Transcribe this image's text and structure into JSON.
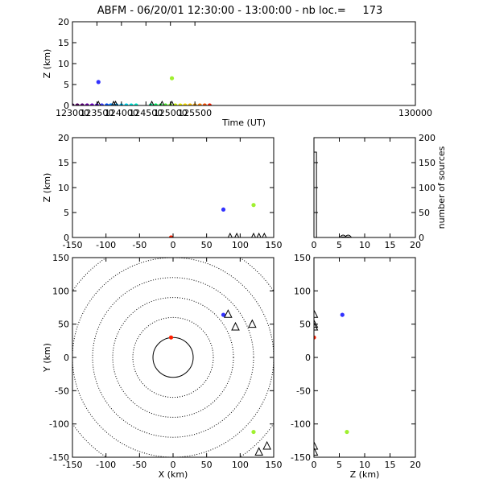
{
  "title": "ABFM - 06/20/01 12:30:00 - 13:00:00 - nb loc.=     173",
  "chart_data": [
    {
      "id": "time_height",
      "type": "scatter",
      "xlabel": "Time (UT)",
      "ylabel": "Z (km)",
      "xlim": [
        123000,
        130000
      ],
      "ylim": [
        0,
        20
      ],
      "xticks": [
        123000,
        123500,
        124000,
        124500,
        125000,
        125500,
        130000
      ],
      "yticks": [
        0,
        5,
        10,
        15,
        20
      ],
      "points": [
        {
          "x": 123000,
          "y": 0,
          "color": "#3c0050"
        },
        {
          "x": 123100,
          "y": 0,
          "color": "#50005a"
        },
        {
          "x": 123200,
          "y": 0,
          "color": "#5a0078"
        },
        {
          "x": 123300,
          "y": 0,
          "color": "#6a00a0"
        },
        {
          "x": 123400,
          "y": 0,
          "color": "#7000c8"
        },
        {
          "x": 123500,
          "y": 0,
          "color": "#5a00e6"
        },
        {
          "x": 123530,
          "y": 5.6,
          "color": "#3232ff"
        },
        {
          "x": 123600,
          "y": 0,
          "color": "#3c3cff"
        },
        {
          "x": 123700,
          "y": 0,
          "color": "#0050ff"
        },
        {
          "x": 123780,
          "y": 0,
          "color": "#0070ff"
        },
        {
          "x": 123800,
          "y": 0,
          "color": "#0090ff"
        },
        {
          "x": 123900,
          "y": 0,
          "color": "#00a8ff"
        },
        {
          "x": 124000,
          "y": 0,
          "color": "#00c8ff"
        },
        {
          "x": 124100,
          "y": 0,
          "color": "#00d8f0"
        },
        {
          "x": 124200,
          "y": 0,
          "color": "#00e8e0"
        },
        {
          "x": 124300,
          "y": 0,
          "color": "#00f0d0"
        },
        {
          "x": 124600,
          "y": 0,
          "color": "#00f090"
        },
        {
          "x": 124700,
          "y": 0,
          "color": "#00f060"
        },
        {
          "x": 124800,
          "y": 0,
          "color": "#20f040"
        },
        {
          "x": 124900,
          "y": 0,
          "color": "#50f030"
        },
        {
          "x": 125000,
          "y": 0,
          "color": "#80f020"
        },
        {
          "x": 125030,
          "y": 6.5,
          "color": "#a0f030"
        },
        {
          "x": 125100,
          "y": 0,
          "color": "#c8f000"
        },
        {
          "x": 125200,
          "y": 0,
          "color": "#f0f000"
        },
        {
          "x": 125300,
          "y": 0,
          "color": "#ffe000"
        },
        {
          "x": 125400,
          "y": 0,
          "color": "#ffc000"
        },
        {
          "x": 125500,
          "y": 0,
          "color": "#ffa000"
        },
        {
          "x": 125600,
          "y": 0,
          "color": "#ff8000"
        },
        {
          "x": 125700,
          "y": 0,
          "color": "#ff5000"
        },
        {
          "x": 125800,
          "y": 0,
          "color": "#ff2000"
        }
      ],
      "triangles": [
        {
          "x": 123530,
          "y": 0
        },
        {
          "x": 123840,
          "y": 0
        },
        {
          "x": 123880,
          "y": 0
        },
        {
          "x": 124620,
          "y": 0
        },
        {
          "x": 124830,
          "y": 0
        },
        {
          "x": 125030,
          "y": 0
        }
      ]
    },
    {
      "id": "x_height",
      "type": "scatter",
      "xlabel": "",
      "ylabel": "Z (km)",
      "xlim": [
        -150,
        150
      ],
      "ylim": [
        0,
        20
      ],
      "xticks": [
        -150,
        -100,
        -50,
        0,
        50,
        100,
        150
      ],
      "yticks": [
        0,
        5,
        10,
        15,
        20
      ],
      "points": [
        {
          "x": 75,
          "y": 5.6,
          "color": "#3232ff"
        },
        {
          "x": 120,
          "y": 6.5,
          "color": "#a0f030"
        },
        {
          "x": -3,
          "y": 0,
          "color": "#ff2000"
        }
      ],
      "triangles": [
        {
          "x": 85,
          "y": 0
        },
        {
          "x": 95,
          "y": 0
        },
        {
          "x": 120,
          "y": 0
        },
        {
          "x": 128,
          "y": 0
        },
        {
          "x": 136,
          "y": 0
        }
      ]
    },
    {
      "id": "height_histogram",
      "type": "bar",
      "xlabel": "",
      "ylabel": "number of sources",
      "xlim": [
        0,
        20
      ],
      "ylim": [
        0,
        200
      ],
      "xticks": [
        0,
        5,
        10,
        15,
        20
      ],
      "yticks": [
        0,
        50,
        100,
        150,
        200
      ],
      "bins": [
        0,
        0.5,
        1,
        1.5,
        2,
        2.5,
        3,
        3.5,
        4,
        4.5,
        5,
        5.5,
        6,
        6.5,
        7
      ],
      "counts": [
        171,
        0,
        0,
        0,
        0,
        0,
        0,
        0,
        0,
        0,
        0,
        1,
        0,
        1,
        0
      ]
    },
    {
      "id": "plan_view",
      "type": "scatter",
      "xlabel": "X (km)",
      "ylabel": "Y (km)",
      "xlim": [
        -150,
        150
      ],
      "ylim": [
        -150,
        150
      ],
      "xticks": [
        -150,
        -100,
        -50,
        0,
        50,
        100,
        150
      ],
      "yticks": [
        -150,
        -100,
        -50,
        0,
        50,
        100,
        150
      ],
      "range_rings_km": [
        30,
        60,
        90,
        120,
        150,
        180
      ],
      "points": [
        {
          "x": 75,
          "y": 64,
          "color": "#3232ff"
        },
        {
          "x": 120,
          "y": -112,
          "color": "#a0f030"
        },
        {
          "x": -3,
          "y": 30,
          "color": "#ff2000"
        }
      ],
      "triangles": [
        {
          "x": 82,
          "y": 65
        },
        {
          "x": 93,
          "y": 46
        },
        {
          "x": 118,
          "y": 50
        },
        {
          "x": 128,
          "y": -142
        },
        {
          "x": 140,
          "y": -133
        }
      ]
    },
    {
      "id": "height_y",
      "type": "scatter",
      "xlabel": "Z (km)",
      "ylabel": "",
      "xlim": [
        0,
        20
      ],
      "ylim": [
        -150,
        150
      ],
      "xticks": [
        0,
        5,
        10,
        15,
        20
      ],
      "yticks": [
        -150,
        -100,
        -50,
        0,
        50,
        100,
        150
      ],
      "points": [
        {
          "x": 5.6,
          "y": 64,
          "color": "#3232ff"
        },
        {
          "x": 6.5,
          "y": -112,
          "color": "#a0f030"
        },
        {
          "x": 0,
          "y": 30,
          "color": "#ff2000"
        }
      ],
      "triangles": [
        {
          "x": 0,
          "y": 65
        },
        {
          "x": 0,
          "y": 50
        },
        {
          "x": 0,
          "y": 46
        },
        {
          "x": 0,
          "y": -133
        },
        {
          "x": 0,
          "y": -142
        }
      ]
    }
  ]
}
